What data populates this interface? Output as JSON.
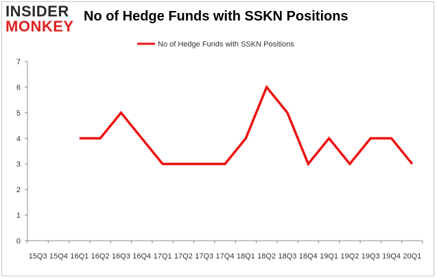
{
  "logo": {
    "top": "INSIDER",
    "bottom": "MONKEY"
  },
  "header": {
    "title": "No of Hedge Funds with SSKN Positions"
  },
  "colors": {
    "line": "#ee1111",
    "axis": "#888888",
    "grid": "#d0d0d0",
    "logo_dark": "#2a2a2a",
    "logo_red": "#e02020"
  },
  "chart_data": {
    "type": "line",
    "title": "No of Hedge Funds with SSKN Positions",
    "xlabel": "",
    "ylabel": "",
    "ylim": [
      0,
      7
    ],
    "yticks": [
      0,
      1,
      2,
      3,
      4,
      5,
      6,
      7
    ],
    "grid": false,
    "legend": "top-center",
    "categories": [
      "15Q3",
      "15Q4",
      "16Q1",
      "16Q2",
      "16Q3",
      "16Q4",
      "17Q1",
      "17Q2",
      "17Q3",
      "17Q4",
      "18Q1",
      "18Q2",
      "18Q3",
      "18Q4",
      "19Q1",
      "19Q2",
      "19Q3",
      "19Q4",
      "20Q1"
    ],
    "series": [
      {
        "name": "No of Hedge Funds with SSKN Positions",
        "values": [
          null,
          null,
          4,
          4,
          5,
          4,
          3,
          3,
          3,
          3,
          4,
          6,
          5,
          3,
          4,
          3,
          4,
          4,
          3
        ]
      }
    ]
  }
}
